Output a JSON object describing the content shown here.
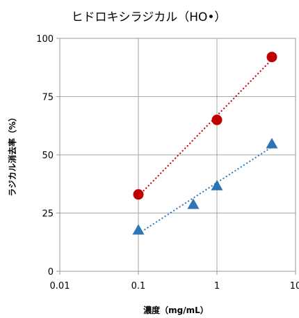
{
  "chart_data": {
    "type": "scatter",
    "title": "ヒドロキシラジカル（HO•）",
    "xlabel": "濃度（mg/mL）",
    "ylabel": "ラジカル消去率（%）",
    "x_scale": "log",
    "xlim": [
      0.01,
      10
    ],
    "ylim": [
      0,
      100
    ],
    "x_ticks": [
      0.01,
      0.1,
      1,
      10
    ],
    "x_tick_labels": [
      "0.01",
      "0.1",
      "1",
      "10"
    ],
    "y_ticks": [
      0,
      25,
      50,
      75,
      100
    ],
    "y_tick_labels": [
      "0",
      "25",
      "50",
      "75",
      "100"
    ],
    "grid": true,
    "series": [
      {
        "marker": "circle",
        "color": "#c00000",
        "trendline": "dotted",
        "x": [
          0.1,
          1,
          5
        ],
        "y": [
          33,
          65,
          92
        ]
      },
      {
        "marker": "triangle",
        "color": "#2e75b6",
        "trendline": "dotted",
        "x": [
          0.1,
          0.5,
          1,
          5
        ],
        "y": [
          18,
          29,
          37,
          55
        ]
      }
    ]
  }
}
